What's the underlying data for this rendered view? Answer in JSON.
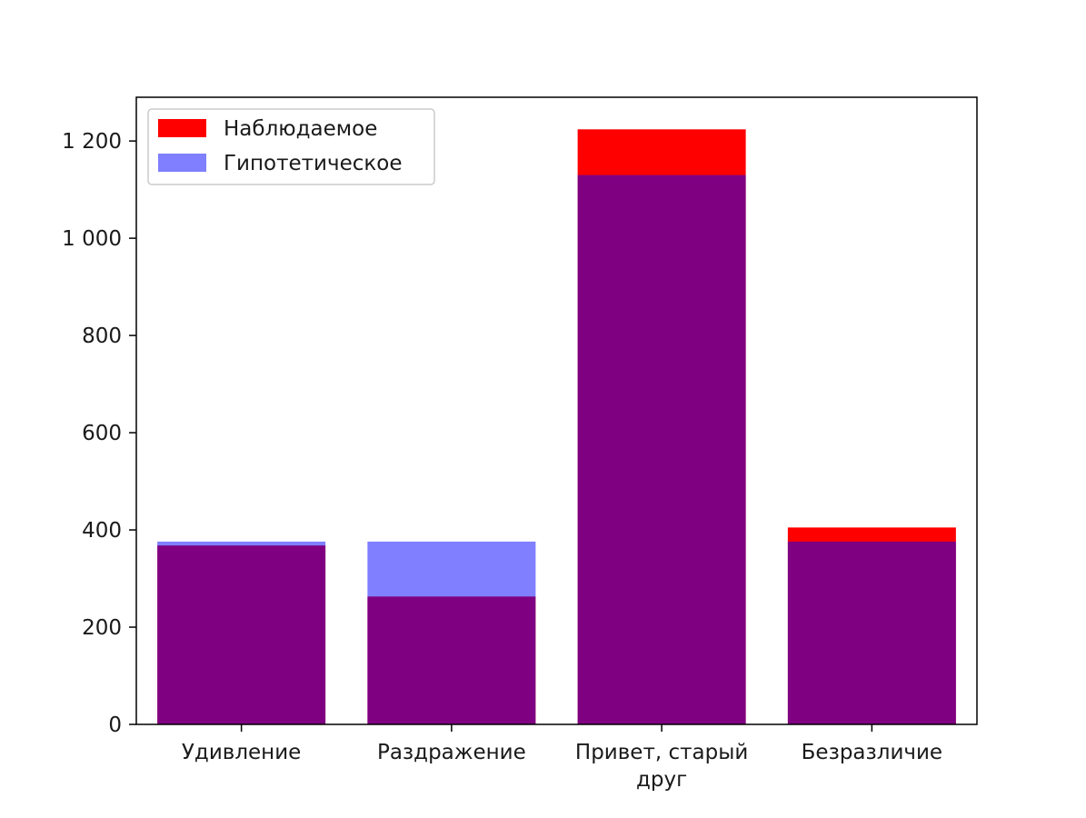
{
  "chart_data": {
    "type": "bar",
    "title": "",
    "xlabel": "",
    "ylabel": "",
    "categories": [
      [
        "Удивление"
      ],
      [
        "Раздражение"
      ],
      [
        "Привет, старый",
        "друг"
      ],
      [
        "Безразличие"
      ]
    ],
    "series": [
      {
        "name": "Наблюдаемое",
        "color": "#ff0000",
        "opacity": 1,
        "values": [
          368,
          263,
          1224,
          405
        ]
      },
      {
        "name": "Гипотетическое",
        "color": "#0000ff",
        "opacity": 0.5,
        "values": [
          376,
          376,
          1130,
          376
        ]
      }
    ],
    "ylim": [
      0,
      1290
    ],
    "yticks": [
      {
        "value": 0,
        "label": "0"
      },
      {
        "value": 200,
        "label": "200"
      },
      {
        "value": 400,
        "label": "400"
      },
      {
        "value": 600,
        "label": "600"
      },
      {
        "value": 800,
        "label": "800"
      },
      {
        "value": 1000,
        "label": "1 000"
      },
      {
        "value": 1200,
        "label": "1 200"
      }
    ],
    "grid": false,
    "legend_position": "top-left"
  }
}
